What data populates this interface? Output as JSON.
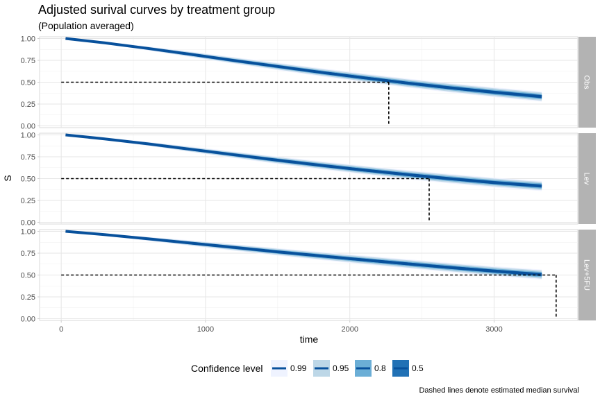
{
  "chart_data": {
    "type": "line",
    "title": "Adjusted surival curves by treatment group",
    "subtitle": "(Population averaged)",
    "xlabel": "time",
    "ylabel": "S",
    "xlim": [
      -150,
      3580
    ],
    "ylim": [
      -0.02,
      1.02
    ],
    "x_ticks": [
      0,
      1000,
      2000,
      3000
    ],
    "x_tick_labels": [
      "0",
      "1000",
      "2000",
      "3000"
    ],
    "y_ticks": [
      0,
      0.25,
      0.5,
      0.75,
      1.0
    ],
    "y_tick_labels": [
      "0.00",
      "0.25",
      "0.50",
      "0.75",
      "1.00"
    ],
    "grid": true,
    "caption": "Dashed lines denote estimated median survival",
    "legend": {
      "title": "Confidence level",
      "position": "bottom",
      "items": [
        {
          "label": "0.99",
          "color": "#eff3ff"
        },
        {
          "label": "0.95",
          "color": "#bdd7e7"
        },
        {
          "label": "0.8",
          "color": "#6baed6"
        },
        {
          "label": "0.5",
          "color": "#2171b5"
        }
      ]
    },
    "line_color": "#08519c",
    "ribbon_colors": [
      "#eff3ff",
      "#bdd7e7",
      "#6baed6",
      "#2171b5"
    ],
    "panels": [
      {
        "strip": "Obs",
        "median_time": 2270,
        "x": [
          30,
          300,
          600,
          900,
          1200,
          1500,
          1800,
          2100,
          2400,
          2700,
          3000,
          3330
        ],
        "y": [
          1.0,
          0.95,
          0.887,
          0.818,
          0.748,
          0.68,
          0.613,
          0.55,
          0.49,
          0.435,
          0.385,
          0.335
        ],
        "ci_half_width": [
          [
            0.004,
            0.014,
            0.024,
            0.032,
            0.038,
            0.043,
            0.047,
            0.05,
            0.052,
            0.054,
            0.056,
            0.058
          ],
          [
            0.003,
            0.01,
            0.018,
            0.025,
            0.03,
            0.034,
            0.037,
            0.04,
            0.042,
            0.044,
            0.045,
            0.047
          ],
          [
            0.002,
            0.007,
            0.012,
            0.016,
            0.019,
            0.022,
            0.024,
            0.026,
            0.028,
            0.029,
            0.03,
            0.031
          ],
          [
            0.001,
            0.004,
            0.007,
            0.009,
            0.011,
            0.013,
            0.014,
            0.015,
            0.016,
            0.017,
            0.018,
            0.018
          ]
        ]
      },
      {
        "strip": "Lev",
        "median_time": 2550,
        "x": [
          30,
          300,
          600,
          900,
          1200,
          1500,
          1800,
          2100,
          2400,
          2700,
          3000,
          3330
        ],
        "y": [
          1.0,
          0.955,
          0.898,
          0.835,
          0.772,
          0.71,
          0.652,
          0.597,
          0.545,
          0.498,
          0.455,
          0.415
        ],
        "ci_half_width": [
          [
            0.004,
            0.014,
            0.024,
            0.032,
            0.038,
            0.043,
            0.047,
            0.05,
            0.052,
            0.054,
            0.056,
            0.058
          ],
          [
            0.003,
            0.01,
            0.018,
            0.025,
            0.03,
            0.034,
            0.037,
            0.04,
            0.042,
            0.044,
            0.045,
            0.047
          ],
          [
            0.002,
            0.007,
            0.012,
            0.016,
            0.019,
            0.022,
            0.024,
            0.026,
            0.028,
            0.029,
            0.03,
            0.031
          ],
          [
            0.001,
            0.004,
            0.007,
            0.009,
            0.011,
            0.013,
            0.014,
            0.015,
            0.016,
            0.017,
            0.018,
            0.018
          ]
        ]
      },
      {
        "strip": "Lev+5FU",
        "median_time": 3430,
        "x": [
          30,
          300,
          600,
          900,
          1200,
          1500,
          1800,
          2100,
          2400,
          2700,
          3000,
          3330
        ],
        "y": [
          1.0,
          0.962,
          0.915,
          0.865,
          0.815,
          0.765,
          0.718,
          0.672,
          0.628,
          0.585,
          0.545,
          0.505
        ],
        "ci_half_width": [
          [
            0.004,
            0.014,
            0.024,
            0.032,
            0.038,
            0.043,
            0.047,
            0.05,
            0.052,
            0.054,
            0.056,
            0.058
          ],
          [
            0.003,
            0.01,
            0.018,
            0.025,
            0.03,
            0.034,
            0.037,
            0.04,
            0.042,
            0.044,
            0.045,
            0.047
          ],
          [
            0.002,
            0.007,
            0.012,
            0.016,
            0.019,
            0.022,
            0.024,
            0.026,
            0.028,
            0.029,
            0.03,
            0.031
          ],
          [
            0.001,
            0.004,
            0.007,
            0.009,
            0.011,
            0.013,
            0.014,
            0.015,
            0.016,
            0.017,
            0.018,
            0.018
          ]
        ]
      }
    ]
  }
}
